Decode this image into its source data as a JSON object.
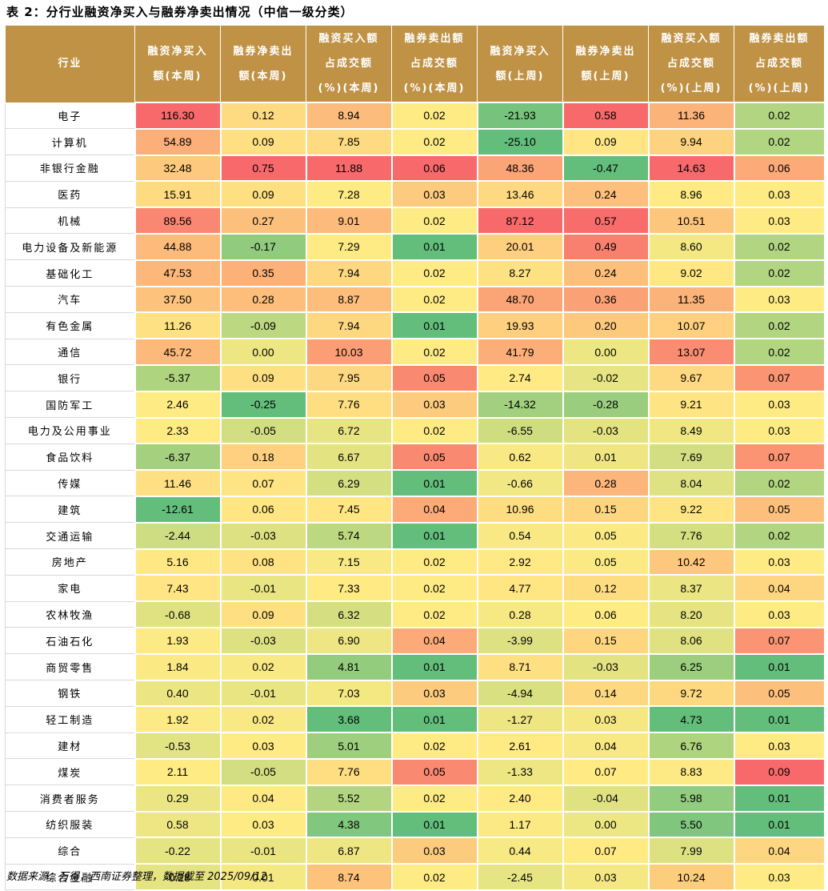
{
  "title": "表 2：分行业融资净买入与融券净卖出情况（中信一级分类）",
  "headers": [
    [
      "行业"
    ],
    [
      "融资净买入",
      "额(本周)"
    ],
    [
      "融券净卖出",
      "额(本周)"
    ],
    [
      "融资买入额",
      "占成交额",
      "(%)(本周)"
    ],
    [
      "融券卖出额",
      "占成交额",
      "(%)(本周)"
    ],
    [
      "融资净买入",
      "额(上周)"
    ],
    [
      "融券净卖出",
      "额(上周)"
    ],
    [
      "融资买入额",
      "占成交额",
      "(%)(上周)"
    ],
    [
      "融券卖出额",
      "占成交额",
      "(%)(上周)"
    ]
  ],
  "rows": [
    [
      "电子",
      "116.30",
      "0.12",
      "8.94",
      "0.02",
      "-21.93",
      "0.58",
      "11.36",
      "0.02"
    ],
    [
      "计算机",
      "54.89",
      "0.09",
      "7.85",
      "0.02",
      "-25.10",
      "0.09",
      "9.94",
      "0.02"
    ],
    [
      "非银行金融",
      "32.48",
      "0.75",
      "11.88",
      "0.06",
      "48.36",
      "-0.47",
      "14.63",
      "0.06"
    ],
    [
      "医药",
      "15.91",
      "0.09",
      "7.28",
      "0.03",
      "13.46",
      "0.24",
      "8.96",
      "0.03"
    ],
    [
      "机械",
      "89.56",
      "0.27",
      "9.01",
      "0.02",
      "87.12",
      "0.57",
      "10.51",
      "0.03"
    ],
    [
      "电力设备及新能源",
      "44.88",
      "-0.17",
      "7.29",
      "0.01",
      "20.01",
      "0.49",
      "8.60",
      "0.02"
    ],
    [
      "基础化工",
      "47.53",
      "0.35",
      "7.94",
      "0.02",
      "8.27",
      "0.24",
      "9.02",
      "0.02"
    ],
    [
      "汽车",
      "37.50",
      "0.28",
      "8.87",
      "0.02",
      "48.70",
      "0.36",
      "11.35",
      "0.03"
    ],
    [
      "有色金属",
      "11.26",
      "-0.09",
      "7.94",
      "0.01",
      "19.93",
      "0.20",
      "10.07",
      "0.02"
    ],
    [
      "通信",
      "45.72",
      "0.00",
      "10.03",
      "0.02",
      "41.79",
      "0.00",
      "13.07",
      "0.02"
    ],
    [
      "银行",
      "-5.37",
      "0.09",
      "7.95",
      "0.05",
      "2.74",
      "-0.02",
      "9.67",
      "0.07"
    ],
    [
      "国防军工",
      "2.46",
      "-0.25",
      "7.76",
      "0.03",
      "-14.32",
      "-0.28",
      "9.21",
      "0.03"
    ],
    [
      "电力及公用事业",
      "2.33",
      "-0.05",
      "6.72",
      "0.02",
      "-6.55",
      "-0.03",
      "8.49",
      "0.03"
    ],
    [
      "食品饮料",
      "-6.37",
      "0.18",
      "6.67",
      "0.05",
      "0.62",
      "0.01",
      "7.69",
      "0.07"
    ],
    [
      "传媒",
      "11.46",
      "0.07",
      "6.29",
      "0.01",
      "-0.66",
      "0.28",
      "8.04",
      "0.02"
    ],
    [
      "建筑",
      "-12.61",
      "0.06",
      "7.45",
      "0.04",
      "10.96",
      "0.15",
      "9.22",
      "0.05"
    ],
    [
      "交通运输",
      "-2.44",
      "-0.03",
      "5.74",
      "0.01",
      "0.54",
      "0.05",
      "7.76",
      "0.02"
    ],
    [
      "房地产",
      "5.16",
      "0.08",
      "7.15",
      "0.02",
      "2.92",
      "0.05",
      "10.42",
      "0.03"
    ],
    [
      "家电",
      "7.43",
      "-0.01",
      "7.33",
      "0.02",
      "4.77",
      "0.12",
      "8.37",
      "0.04"
    ],
    [
      "农林牧渔",
      "-0.68",
      "0.09",
      "6.32",
      "0.02",
      "0.28",
      "0.06",
      "8.20",
      "0.03"
    ],
    [
      "石油石化",
      "1.93",
      "-0.03",
      "6.90",
      "0.04",
      "-3.99",
      "0.15",
      "8.06",
      "0.07"
    ],
    [
      "商贸零售",
      "1.84",
      "0.02",
      "4.81",
      "0.01",
      "8.71",
      "-0.03",
      "6.25",
      "0.01"
    ],
    [
      "钢铁",
      "0.40",
      "-0.01",
      "7.03",
      "0.03",
      "-4.94",
      "0.14",
      "9.72",
      "0.05"
    ],
    [
      "轻工制造",
      "1.92",
      "0.02",
      "3.68",
      "0.01",
      "-1.27",
      "0.03",
      "4.73",
      "0.01"
    ],
    [
      "建材",
      "-0.53",
      "0.03",
      "5.01",
      "0.02",
      "2.61",
      "0.04",
      "6.76",
      "0.03"
    ],
    [
      "煤炭",
      "2.11",
      "-0.05",
      "7.76",
      "0.05",
      "-1.33",
      "0.07",
      "8.83",
      "0.09"
    ],
    [
      "消费者服务",
      "0.29",
      "0.04",
      "5.52",
      "0.02",
      "2.40",
      "-0.04",
      "5.98",
      "0.01"
    ],
    [
      "纺织服装",
      "0.58",
      "0.03",
      "4.38",
      "0.01",
      "1.17",
      "0.00",
      "5.50",
      "0.01"
    ],
    [
      "综合",
      "-0.22",
      "-0.01",
      "6.87",
      "0.03",
      "0.44",
      "0.07",
      "7.99",
      "0.04"
    ],
    [
      "综合金融",
      "-0.28",
      "0.01",
      "8.74",
      "0.02",
      "-2.45",
      "0.03",
      "10.24",
      "0.03"
    ]
  ],
  "colors": {
    "header_bg": "#bf9245",
    "low": "#63be7b",
    "mid": "#ffeb84",
    "high": "#f8696b"
  },
  "source": "数据来源：万得，西南证券整理，数据截至 2025/09/12"
}
